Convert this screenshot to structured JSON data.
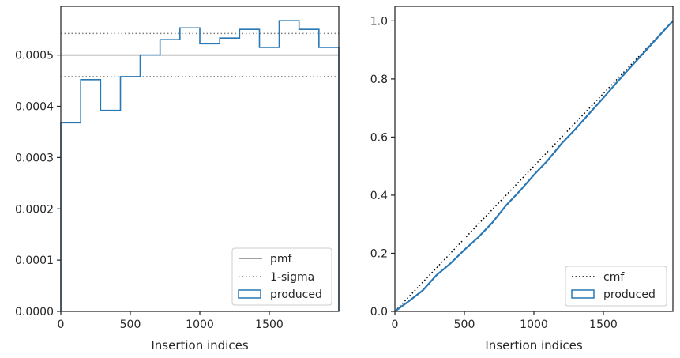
{
  "chart_data": [
    {
      "type": "step",
      "xlabel": "Insertion indices",
      "ylabel": "",
      "xlim": [
        0,
        2000
      ],
      "ylim": [
        0,
        0.000595
      ],
      "x_ticks": [
        0,
        500,
        1000,
        1500
      ],
      "y_ticks": [
        0.0,
        0.0001,
        0.0002,
        0.0003,
        0.0004,
        0.0005
      ],
      "y_tick_labels": [
        "0.0000",
        "0.0001",
        "0.0002",
        "0.0003",
        "0.0004",
        "0.0005"
      ],
      "pmf": 0.0005,
      "sigma_band": [
        0.000458,
        0.000542
      ],
      "histogram": {
        "name": "produced",
        "bin_edges": [
          0,
          143,
          286,
          429,
          571,
          714,
          857,
          1000,
          1143,
          1286,
          1429,
          1571,
          1714,
          1857,
          2000
        ],
        "values": [
          0.000368,
          0.000452,
          0.000392,
          0.000458,
          0.0005,
          0.00053,
          0.000553,
          0.000522,
          0.000533,
          0.00055,
          0.000515,
          0.000567,
          0.00055,
          0.000515
        ]
      },
      "legend": {
        "position": "lower-right",
        "entries": [
          {
            "label": "pmf",
            "style": "solid",
            "color": "#808080"
          },
          {
            "label": "1-sigma",
            "style": "dotted",
            "color": "#808080"
          },
          {
            "label": "produced",
            "style": "patch",
            "color": "#2878b5"
          }
        ]
      },
      "grid": false
    },
    {
      "type": "line",
      "xlabel": "Insertion indices",
      "ylabel": "",
      "xlim": [
        0,
        2000
      ],
      "ylim": [
        0,
        1.05
      ],
      "x_ticks": [
        0,
        500,
        1000,
        1500
      ],
      "y_ticks": [
        0.0,
        0.2,
        0.4,
        0.6,
        0.8,
        1.0
      ],
      "y_tick_labels": [
        "0.0",
        "0.2",
        "0.4",
        "0.6",
        "0.8",
        "1.0"
      ],
      "series": [
        {
          "name": "cmf",
          "style": "dotted",
          "color": "#000000",
          "x": [
            0,
            2000
          ],
          "y": [
            0,
            1.0
          ]
        },
        {
          "name": "produced",
          "style": "solid",
          "color": "#2878b5",
          "x": [
            0,
            100,
            200,
            300,
            400,
            500,
            600,
            700,
            800,
            900,
            1000,
            1100,
            1200,
            1300,
            1400,
            1500,
            1600,
            1700,
            1800,
            1900,
            2000
          ],
          "y": [
            0,
            0.035,
            0.072,
            0.125,
            0.165,
            0.212,
            0.255,
            0.305,
            0.365,
            0.415,
            0.47,
            0.52,
            0.578,
            0.628,
            0.682,
            0.735,
            0.79,
            0.843,
            0.895,
            0.948,
            1.0
          ]
        }
      ],
      "legend": {
        "position": "lower-right",
        "entries": [
          {
            "label": "cmf",
            "style": "dotted",
            "color": "#000000"
          },
          {
            "label": "produced",
            "style": "patch",
            "color": "#2878b5"
          }
        ]
      },
      "grid": false
    }
  ]
}
